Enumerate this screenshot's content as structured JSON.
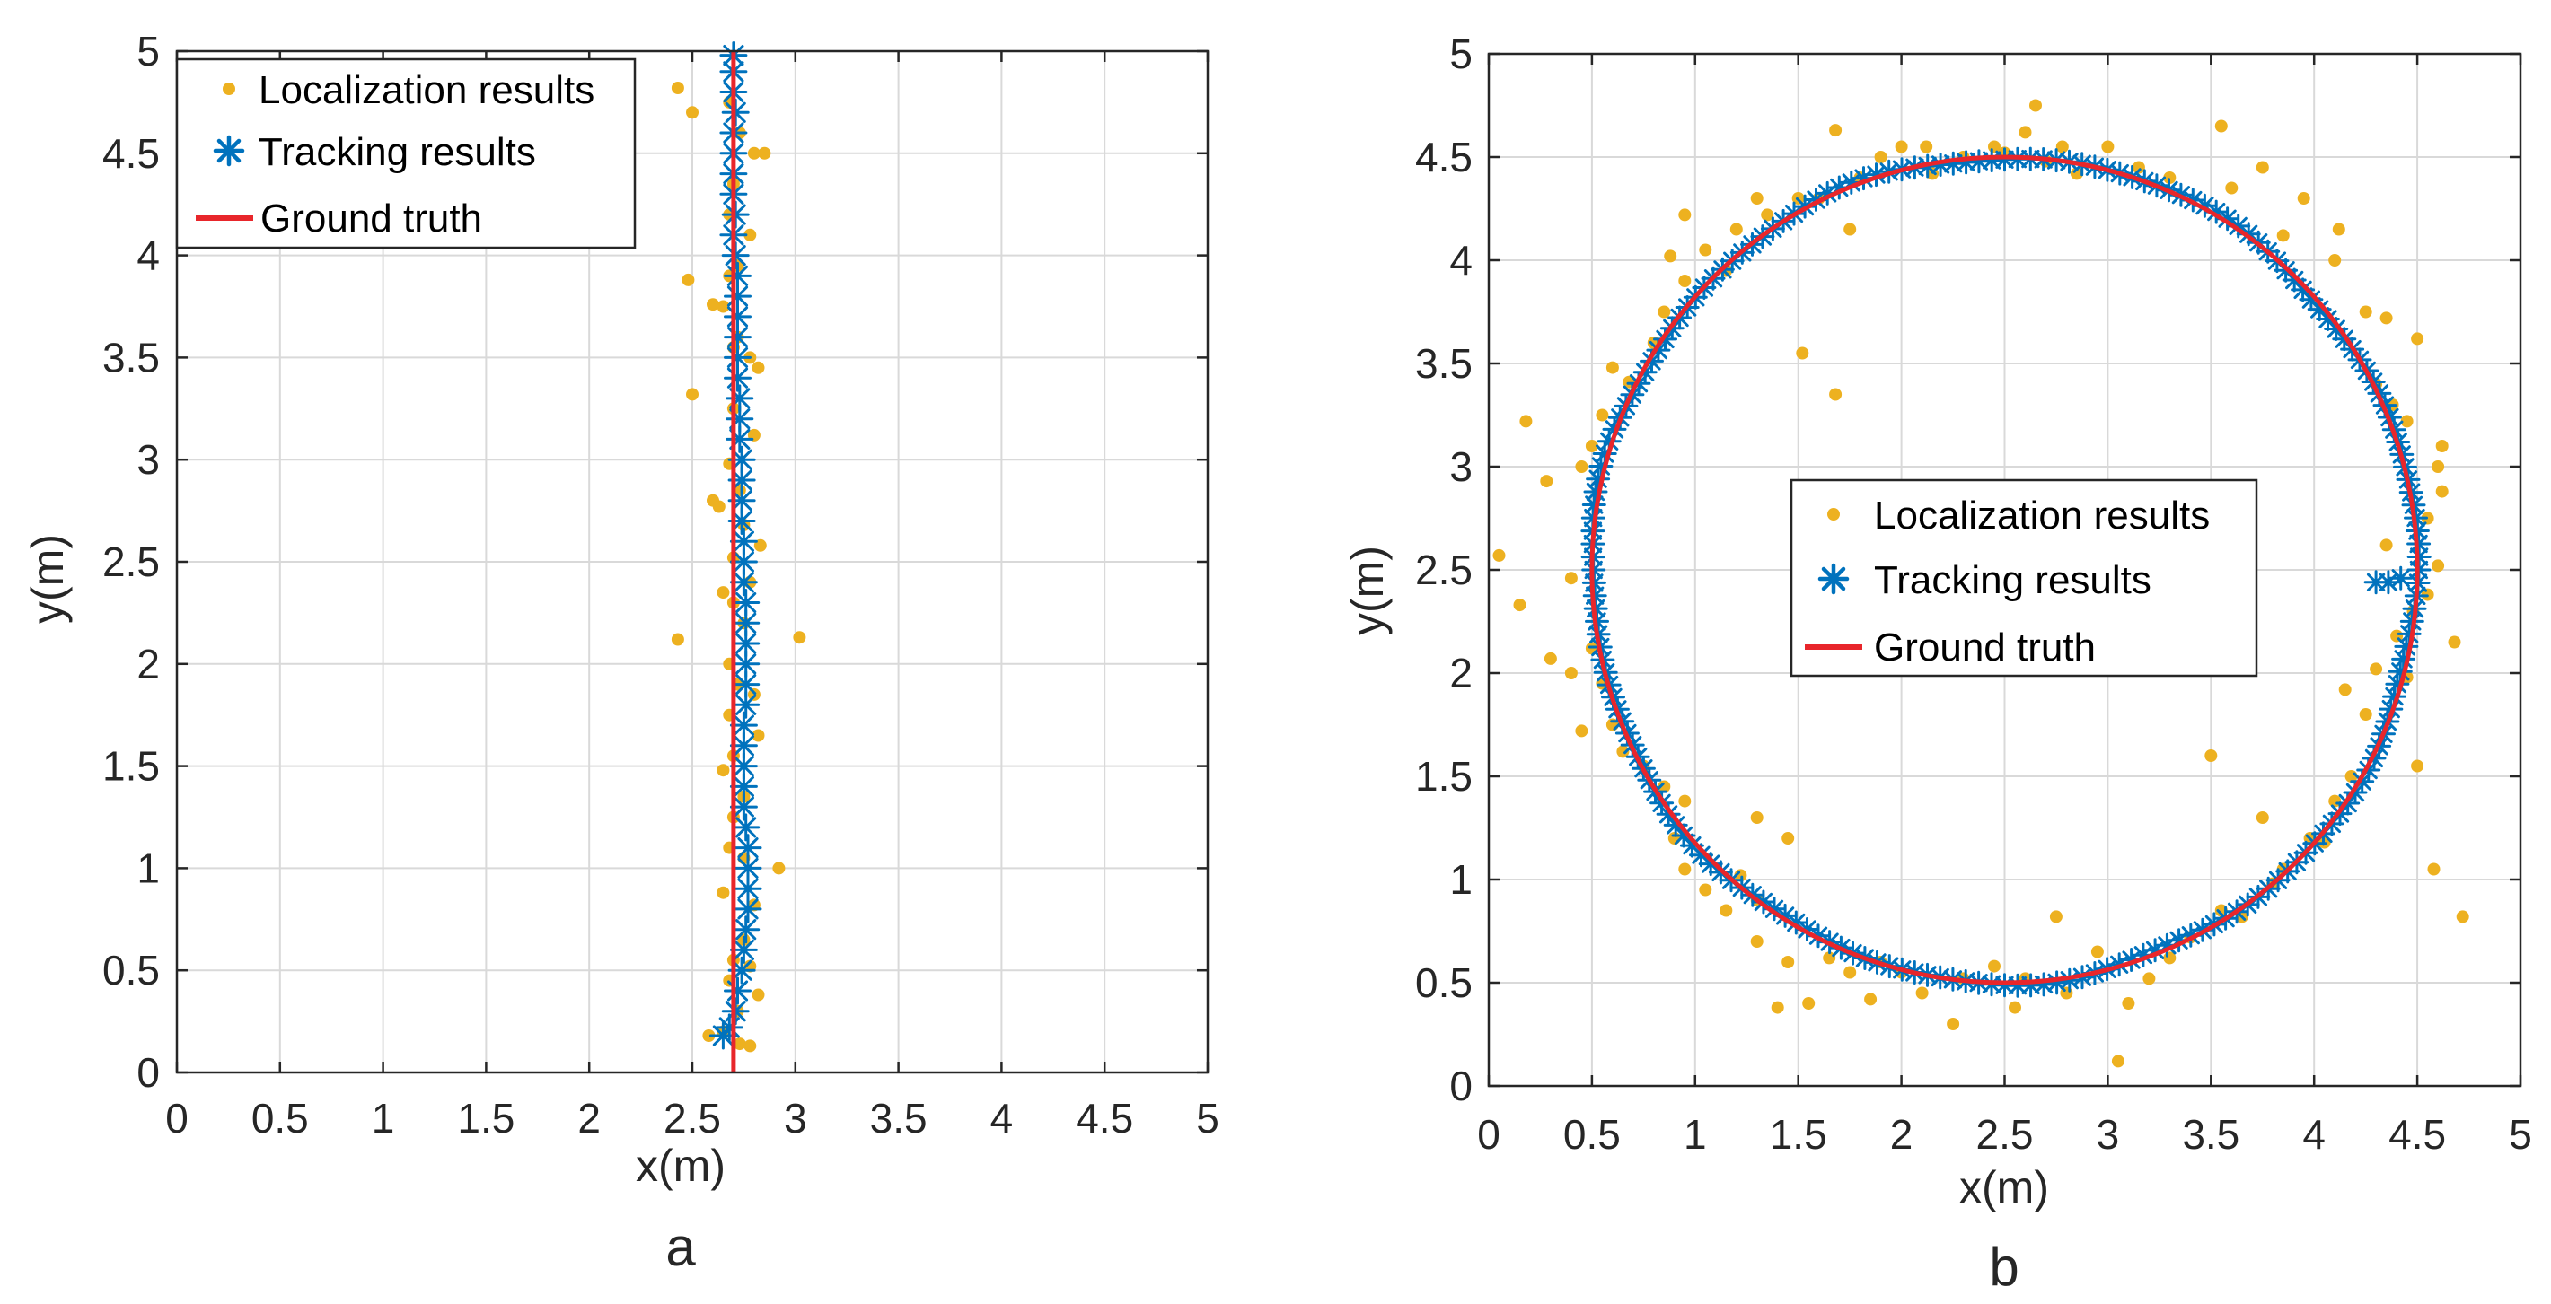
{
  "colors": {
    "localization": "#EDB120",
    "tracking": "#0072BD",
    "ground_truth": "#E8262B",
    "grid": "#D9D9D9",
    "axis": "#262626"
  },
  "chart_data": [
    {
      "type": "scatter",
      "panel_label": "a",
      "xlabel": "x(m)",
      "ylabel": "y(m)",
      "xlim": [
        0,
        5
      ],
      "ylim": [
        0,
        5
      ],
      "xticks": [
        "0",
        "0.5",
        "1",
        "1.5",
        "2",
        "2.5",
        "3",
        "3.5",
        "4",
        "4.5",
        "5"
      ],
      "yticks": [
        "0",
        "0.5",
        "1",
        "1.5",
        "2",
        "2.5",
        "3",
        "3.5",
        "4",
        "4.5",
        "5"
      ],
      "grid": true,
      "legend_position": "top-left",
      "legend": [
        "Localization results",
        "Tracking results",
        "Ground truth"
      ],
      "series": [
        {
          "name": "Localization results",
          "style": "dots",
          "points": [
            [
              2.43,
              4.82
            ],
            [
              2.5,
              4.7
            ],
            [
              2.68,
              4.75
            ],
            [
              2.73,
              4.6
            ],
            [
              2.85,
              4.5
            ],
            [
              2.8,
              4.5
            ],
            [
              2.7,
              4.35
            ],
            [
              2.68,
              4.2
            ],
            [
              2.78,
              4.1
            ],
            [
              2.72,
              3.95
            ],
            [
              2.48,
              3.88
            ],
            [
              2.68,
              3.9
            ],
            [
              2.6,
              3.76
            ],
            [
              2.65,
              3.75
            ],
            [
              2.72,
              3.6
            ],
            [
              2.7,
              3.55
            ],
            [
              2.78,
              3.5
            ],
            [
              2.82,
              3.45
            ],
            [
              2.7,
              3.25
            ],
            [
              2.5,
              3.32
            ],
            [
              2.8,
              3.12
            ],
            [
              2.68,
              2.98
            ],
            [
              2.73,
              2.85
            ],
            [
              2.6,
              2.8
            ],
            [
              2.63,
              2.77
            ],
            [
              2.75,
              2.68
            ],
            [
              2.83,
              2.58
            ],
            [
              2.7,
              2.52
            ],
            [
              2.78,
              2.4
            ],
            [
              2.65,
              2.35
            ],
            [
              2.7,
              2.3
            ],
            [
              2.75,
              2.2
            ],
            [
              2.43,
              2.12
            ],
            [
              3.02,
              2.13
            ],
            [
              2.68,
              2.0
            ],
            [
              2.72,
              1.9
            ],
            [
              2.8,
              1.85
            ],
            [
              2.68,
              1.75
            ],
            [
              2.82,
              1.65
            ],
            [
              2.7,
              1.55
            ],
            [
              2.65,
              1.48
            ],
            [
              2.75,
              1.35
            ],
            [
              2.7,
              1.25
            ],
            [
              2.68,
              1.1
            ],
            [
              2.75,
              1.05
            ],
            [
              2.92,
              1.0
            ],
            [
              2.65,
              0.88
            ],
            [
              2.8,
              0.82
            ],
            [
              2.75,
              0.65
            ],
            [
              2.7,
              0.55
            ],
            [
              2.78,
              0.52
            ],
            [
              2.68,
              0.45
            ],
            [
              2.82,
              0.38
            ],
            [
              2.72,
              0.3
            ],
            [
              2.58,
              0.18
            ],
            [
              2.73,
              0.14
            ],
            [
              2.78,
              0.13
            ],
            [
              2.65,
              0.2
            ]
          ]
        },
        {
          "name": "Tracking results",
          "style": "asterisk",
          "points": [
            [
              2.7,
              4.98
            ],
            [
              2.7,
              4.9
            ],
            [
              2.7,
              4.8
            ],
            [
              2.71,
              4.7
            ],
            [
              2.7,
              4.6
            ],
            [
              2.7,
              4.5
            ],
            [
              2.7,
              4.4
            ],
            [
              2.7,
              4.3
            ],
            [
              2.71,
              4.2
            ],
            [
              2.7,
              4.1
            ],
            [
              2.71,
              4.0
            ],
            [
              2.72,
              3.9
            ],
            [
              2.72,
              3.8
            ],
            [
              2.72,
              3.7
            ],
            [
              2.72,
              3.6
            ],
            [
              2.72,
              3.5
            ],
            [
              2.72,
              3.4
            ],
            [
              2.73,
              3.3
            ],
            [
              2.73,
              3.2
            ],
            [
              2.73,
              3.1
            ],
            [
              2.74,
              3.0
            ],
            [
              2.74,
              2.9
            ],
            [
              2.74,
              2.8
            ],
            [
              2.74,
              2.7
            ],
            [
              2.75,
              2.6
            ],
            [
              2.75,
              2.5
            ],
            [
              2.75,
              2.4
            ],
            [
              2.76,
              2.3
            ],
            [
              2.76,
              2.2
            ],
            [
              2.76,
              2.1
            ],
            [
              2.76,
              2.0
            ],
            [
              2.76,
              1.9
            ],
            [
              2.76,
              1.8
            ],
            [
              2.75,
              1.7
            ],
            [
              2.75,
              1.6
            ],
            [
              2.75,
              1.5
            ],
            [
              2.75,
              1.4
            ],
            [
              2.75,
              1.3
            ],
            [
              2.76,
              1.2
            ],
            [
              2.77,
              1.1
            ],
            [
              2.77,
              1.0
            ],
            [
              2.77,
              0.9
            ],
            [
              2.77,
              0.8
            ],
            [
              2.76,
              0.7
            ],
            [
              2.75,
              0.6
            ],
            [
              2.74,
              0.5
            ],
            [
              2.72,
              0.4
            ],
            [
              2.71,
              0.3
            ],
            [
              2.68,
              0.22
            ],
            [
              2.65,
              0.18
            ]
          ]
        },
        {
          "name": "Ground truth",
          "style": "line",
          "points": [
            [
              2.7,
              0.0
            ],
            [
              2.7,
              5.0
            ]
          ]
        }
      ]
    },
    {
      "type": "scatter",
      "panel_label": "b",
      "xlabel": "x(m)",
      "ylabel": "y(m)",
      "xlim": [
        0,
        5
      ],
      "ylim": [
        0,
        5
      ],
      "xticks": [
        "0",
        "0.5",
        "1",
        "1.5",
        "2",
        "2.5",
        "3",
        "3.5",
        "4",
        "4.5",
        "5"
      ],
      "yticks": [
        "0",
        "0.5",
        "1",
        "1.5",
        "2",
        "2.5",
        "3",
        "3.5",
        "4",
        "4.5",
        "5"
      ],
      "grid": true,
      "legend_position": "center",
      "legend": [
        "Localization results",
        "Tracking results",
        "Ground truth"
      ],
      "series": [
        {
          "name": "Localization results",
          "style": "dots",
          "points": [
            [
              0.05,
              2.57
            ],
            [
              0.18,
              3.22
            ],
            [
              0.15,
              2.33
            ],
            [
              0.28,
              2.93
            ],
            [
              0.3,
              2.07
            ],
            [
              0.4,
              2.46
            ],
            [
              0.45,
              3.0
            ],
            [
              0.5,
              3.1
            ],
            [
              0.55,
              3.25
            ],
            [
              0.6,
              3.48
            ],
            [
              0.68,
              3.41
            ],
            [
              0.8,
              3.6
            ],
            [
              0.85,
              3.75
            ],
            [
              0.95,
              3.9
            ],
            [
              0.88,
              4.02
            ],
            [
              0.95,
              4.22
            ],
            [
              1.05,
              4.05
            ],
            [
              1.15,
              3.95
            ],
            [
              1.2,
              4.15
            ],
            [
              1.3,
              4.3
            ],
            [
              1.35,
              4.22
            ],
            [
              1.5,
              4.3
            ],
            [
              1.6,
              4.3
            ],
            [
              1.68,
              4.63
            ],
            [
              1.75,
              4.15
            ],
            [
              1.8,
              4.4
            ],
            [
              1.9,
              4.5
            ],
            [
              2.0,
              4.55
            ],
            [
              2.12,
              4.55
            ],
            [
              2.15,
              4.42
            ],
            [
              2.3,
              4.5
            ],
            [
              2.45,
              4.55
            ],
            [
              2.5,
              4.52
            ],
            [
              2.6,
              4.62
            ],
            [
              2.65,
              4.75
            ],
            [
              2.7,
              4.48
            ],
            [
              2.78,
              4.55
            ],
            [
              2.85,
              4.42
            ],
            [
              3.0,
              4.55
            ],
            [
              3.15,
              4.45
            ],
            [
              3.3,
              4.4
            ],
            [
              3.55,
              4.65
            ],
            [
              3.6,
              4.35
            ],
            [
              3.75,
              4.45
            ],
            [
              3.85,
              4.12
            ],
            [
              3.95,
              4.3
            ],
            [
              4.1,
              4.0
            ],
            [
              4.12,
              4.15
            ],
            [
              4.25,
              3.75
            ],
            [
              4.35,
              3.72
            ],
            [
              4.5,
              3.62
            ],
            [
              4.3,
              3.4
            ],
            [
              4.38,
              3.3
            ],
            [
              4.45,
              3.22
            ],
            [
              4.6,
              3.0
            ],
            [
              4.62,
              2.88
            ],
            [
              4.55,
              2.75
            ],
            [
              4.6,
              2.52
            ],
            [
              4.55,
              2.38
            ],
            [
              4.48,
              2.3
            ],
            [
              4.4,
              2.18
            ],
            [
              4.45,
              1.98
            ],
            [
              4.3,
              2.02
            ],
            [
              4.25,
              1.8
            ],
            [
              4.15,
              1.92
            ],
            [
              4.18,
              1.5
            ],
            [
              4.1,
              1.38
            ],
            [
              4.05,
              1.18
            ],
            [
              3.98,
              1.2
            ],
            [
              3.85,
              1.05
            ],
            [
              3.8,
              0.98
            ],
            [
              3.75,
              1.3
            ],
            [
              3.5,
              1.6
            ],
            [
              3.65,
              0.82
            ],
            [
              3.55,
              0.85
            ],
            [
              3.4,
              0.72
            ],
            [
              3.3,
              0.62
            ],
            [
              3.2,
              0.52
            ],
            [
              3.1,
              0.4
            ],
            [
              3.05,
              0.12
            ],
            [
              2.95,
              0.65
            ],
            [
              2.8,
              0.45
            ],
            [
              2.75,
              0.82
            ],
            [
              2.6,
              0.52
            ],
            [
              2.55,
              0.38
            ],
            [
              2.45,
              0.58
            ],
            [
              2.3,
              0.52
            ],
            [
              2.25,
              0.3
            ],
            [
              2.1,
              0.45
            ],
            [
              2.0,
              0.55
            ],
            [
              1.9,
              0.6
            ],
            [
              1.85,
              0.42
            ],
            [
              1.75,
              0.55
            ],
            [
              1.65,
              0.62
            ],
            [
              1.55,
              0.4
            ],
            [
              1.45,
              0.6
            ],
            [
              1.4,
              0.38
            ],
            [
              1.3,
              0.7
            ],
            [
              1.3,
              0.9
            ],
            [
              1.22,
              1.02
            ],
            [
              1.15,
              0.85
            ],
            [
              1.05,
              0.95
            ],
            [
              0.95,
              1.05
            ],
            [
              0.9,
              1.2
            ],
            [
              0.95,
              1.38
            ],
            [
              0.85,
              1.45
            ],
            [
              0.75,
              1.55
            ],
            [
              0.65,
              1.62
            ],
            [
              0.6,
              1.75
            ],
            [
              0.55,
              1.95
            ],
            [
              0.45,
              1.72
            ],
            [
              0.4,
              2.0
            ],
            [
              0.5,
              2.12
            ],
            [
              1.3,
              1.3
            ],
            [
              1.45,
              1.2
            ],
            [
              1.52,
              3.55
            ],
            [
              1.68,
              3.35
            ],
            [
              4.5,
              1.55
            ],
            [
              4.35,
              2.62
            ],
            [
              4.68,
              2.15
            ],
            [
              4.72,
              0.82
            ],
            [
              4.58,
              1.05
            ],
            [
              4.62,
              3.1
            ]
          ]
        },
        {
          "name": "Tracking results",
          "style": "asterisk",
          "circle": {
            "center": [
              2.5,
              2.5
            ],
            "radius": 2.0,
            "count": 200
          },
          "extra_points": [
            [
              4.3,
              2.44
            ],
            [
              4.36,
              2.44
            ],
            [
              4.42,
              2.46
            ]
          ]
        },
        {
          "name": "Ground truth",
          "style": "line",
          "circle": {
            "center": [
              2.5,
              2.5
            ],
            "radius": 2.0
          }
        }
      ]
    }
  ]
}
